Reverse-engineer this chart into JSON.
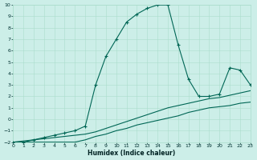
{
  "xlabel": "Humidex (Indice chaleur)",
  "bg_color": "#cceee8",
  "grid_color": "#aaddcc",
  "line_color": "#006655",
  "xlim": [
    0,
    23
  ],
  "ylim": [
    -2,
    10
  ],
  "xticks": [
    0,
    1,
    2,
    3,
    4,
    5,
    6,
    7,
    8,
    9,
    10,
    11,
    12,
    13,
    14,
    15,
    16,
    17,
    18,
    19,
    20,
    21,
    22,
    23
  ],
  "yticks": [
    -2,
    -1,
    0,
    1,
    2,
    3,
    4,
    5,
    6,
    7,
    8,
    9,
    10
  ],
  "hours": [
    0,
    1,
    2,
    3,
    4,
    5,
    6,
    7,
    8,
    9,
    10,
    11,
    12,
    13,
    14,
    15,
    16,
    17,
    18,
    19,
    20,
    21,
    22,
    23
  ],
  "line_peak": [
    -2.0,
    -2.0,
    -1.8,
    -1.6,
    -1.4,
    -1.2,
    -1.0,
    -0.6,
    3.0,
    5.5,
    7.0,
    8.5,
    9.2,
    9.7,
    10.0,
    10.0,
    6.5,
    3.5,
    2.0,
    2.0,
    2.2,
    4.5,
    4.3,
    3.0
  ],
  "line_min": [
    -2.0,
    -2.0,
    -2.0,
    -2.0,
    -2.0,
    -2.0,
    -2.0,
    -1.8,
    -1.5,
    -1.3,
    -1.0,
    -0.8,
    -0.5,
    -0.3,
    -0.1,
    0.1,
    0.3,
    0.6,
    0.8,
    1.0,
    1.1,
    1.2,
    1.4,
    1.5
  ],
  "line_mean": [
    -2.0,
    -1.9,
    -1.8,
    -1.7,
    -1.6,
    -1.5,
    -1.4,
    -1.3,
    -1.1,
    -0.8,
    -0.5,
    -0.2,
    0.1,
    0.4,
    0.7,
    1.0,
    1.2,
    1.4,
    1.6,
    1.8,
    1.9,
    2.1,
    2.3,
    2.5
  ]
}
